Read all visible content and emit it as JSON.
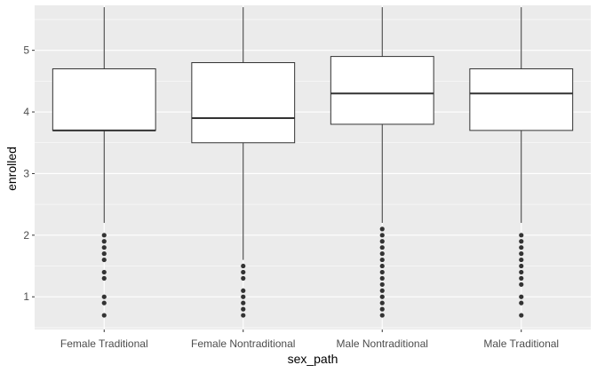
{
  "chart_data": {
    "type": "boxplot",
    "xlabel": "sex_path",
    "ylabel": "enrolled",
    "ylim": [
      0.47,
      5.73
    ],
    "yticks": [
      1,
      2,
      3,
      4,
      5
    ],
    "grid": true,
    "colors": {
      "panel": "#ebebeb",
      "grid_major": "#ffffff",
      "box_fill": "#ffffff",
      "stroke": "#333333",
      "outlier": "#333333"
    },
    "categories": [
      "Female Traditional",
      "Female Nontraditional",
      "Male Nontraditional",
      "Male Traditional"
    ],
    "boxes": [
      {
        "category": "Female Traditional",
        "whisker_low": 2.2,
        "q1": 3.7,
        "median": 3.7,
        "q3": 4.7,
        "whisker_high": 5.7,
        "outliers": [
          0.7,
          0.9,
          1.0,
          1.3,
          1.4,
          1.6,
          1.7,
          1.8,
          1.9,
          2.0
        ]
      },
      {
        "category": "Female Nontraditional",
        "whisker_low": 1.6,
        "q1": 3.5,
        "median": 3.9,
        "q3": 4.8,
        "whisker_high": 5.7,
        "outliers": [
          0.7,
          0.8,
          0.9,
          1.0,
          1.1,
          1.3,
          1.4,
          1.5
        ]
      },
      {
        "category": "Male Nontraditional",
        "whisker_low": 2.2,
        "q1": 3.8,
        "median": 4.3,
        "q3": 4.9,
        "whisker_high": 5.7,
        "outliers": [
          0.7,
          0.8,
          0.9,
          1.0,
          1.1,
          1.2,
          1.3,
          1.4,
          1.5,
          1.6,
          1.7,
          1.8,
          1.9,
          2.0,
          2.1
        ]
      },
      {
        "category": "Male Traditional",
        "whisker_low": 2.2,
        "q1": 3.7,
        "median": 4.3,
        "q3": 4.7,
        "whisker_high": 5.7,
        "outliers": [
          0.7,
          0.9,
          1.0,
          1.2,
          1.3,
          1.4,
          1.5,
          1.6,
          1.7,
          1.8,
          1.9,
          2.0
        ]
      }
    ]
  }
}
